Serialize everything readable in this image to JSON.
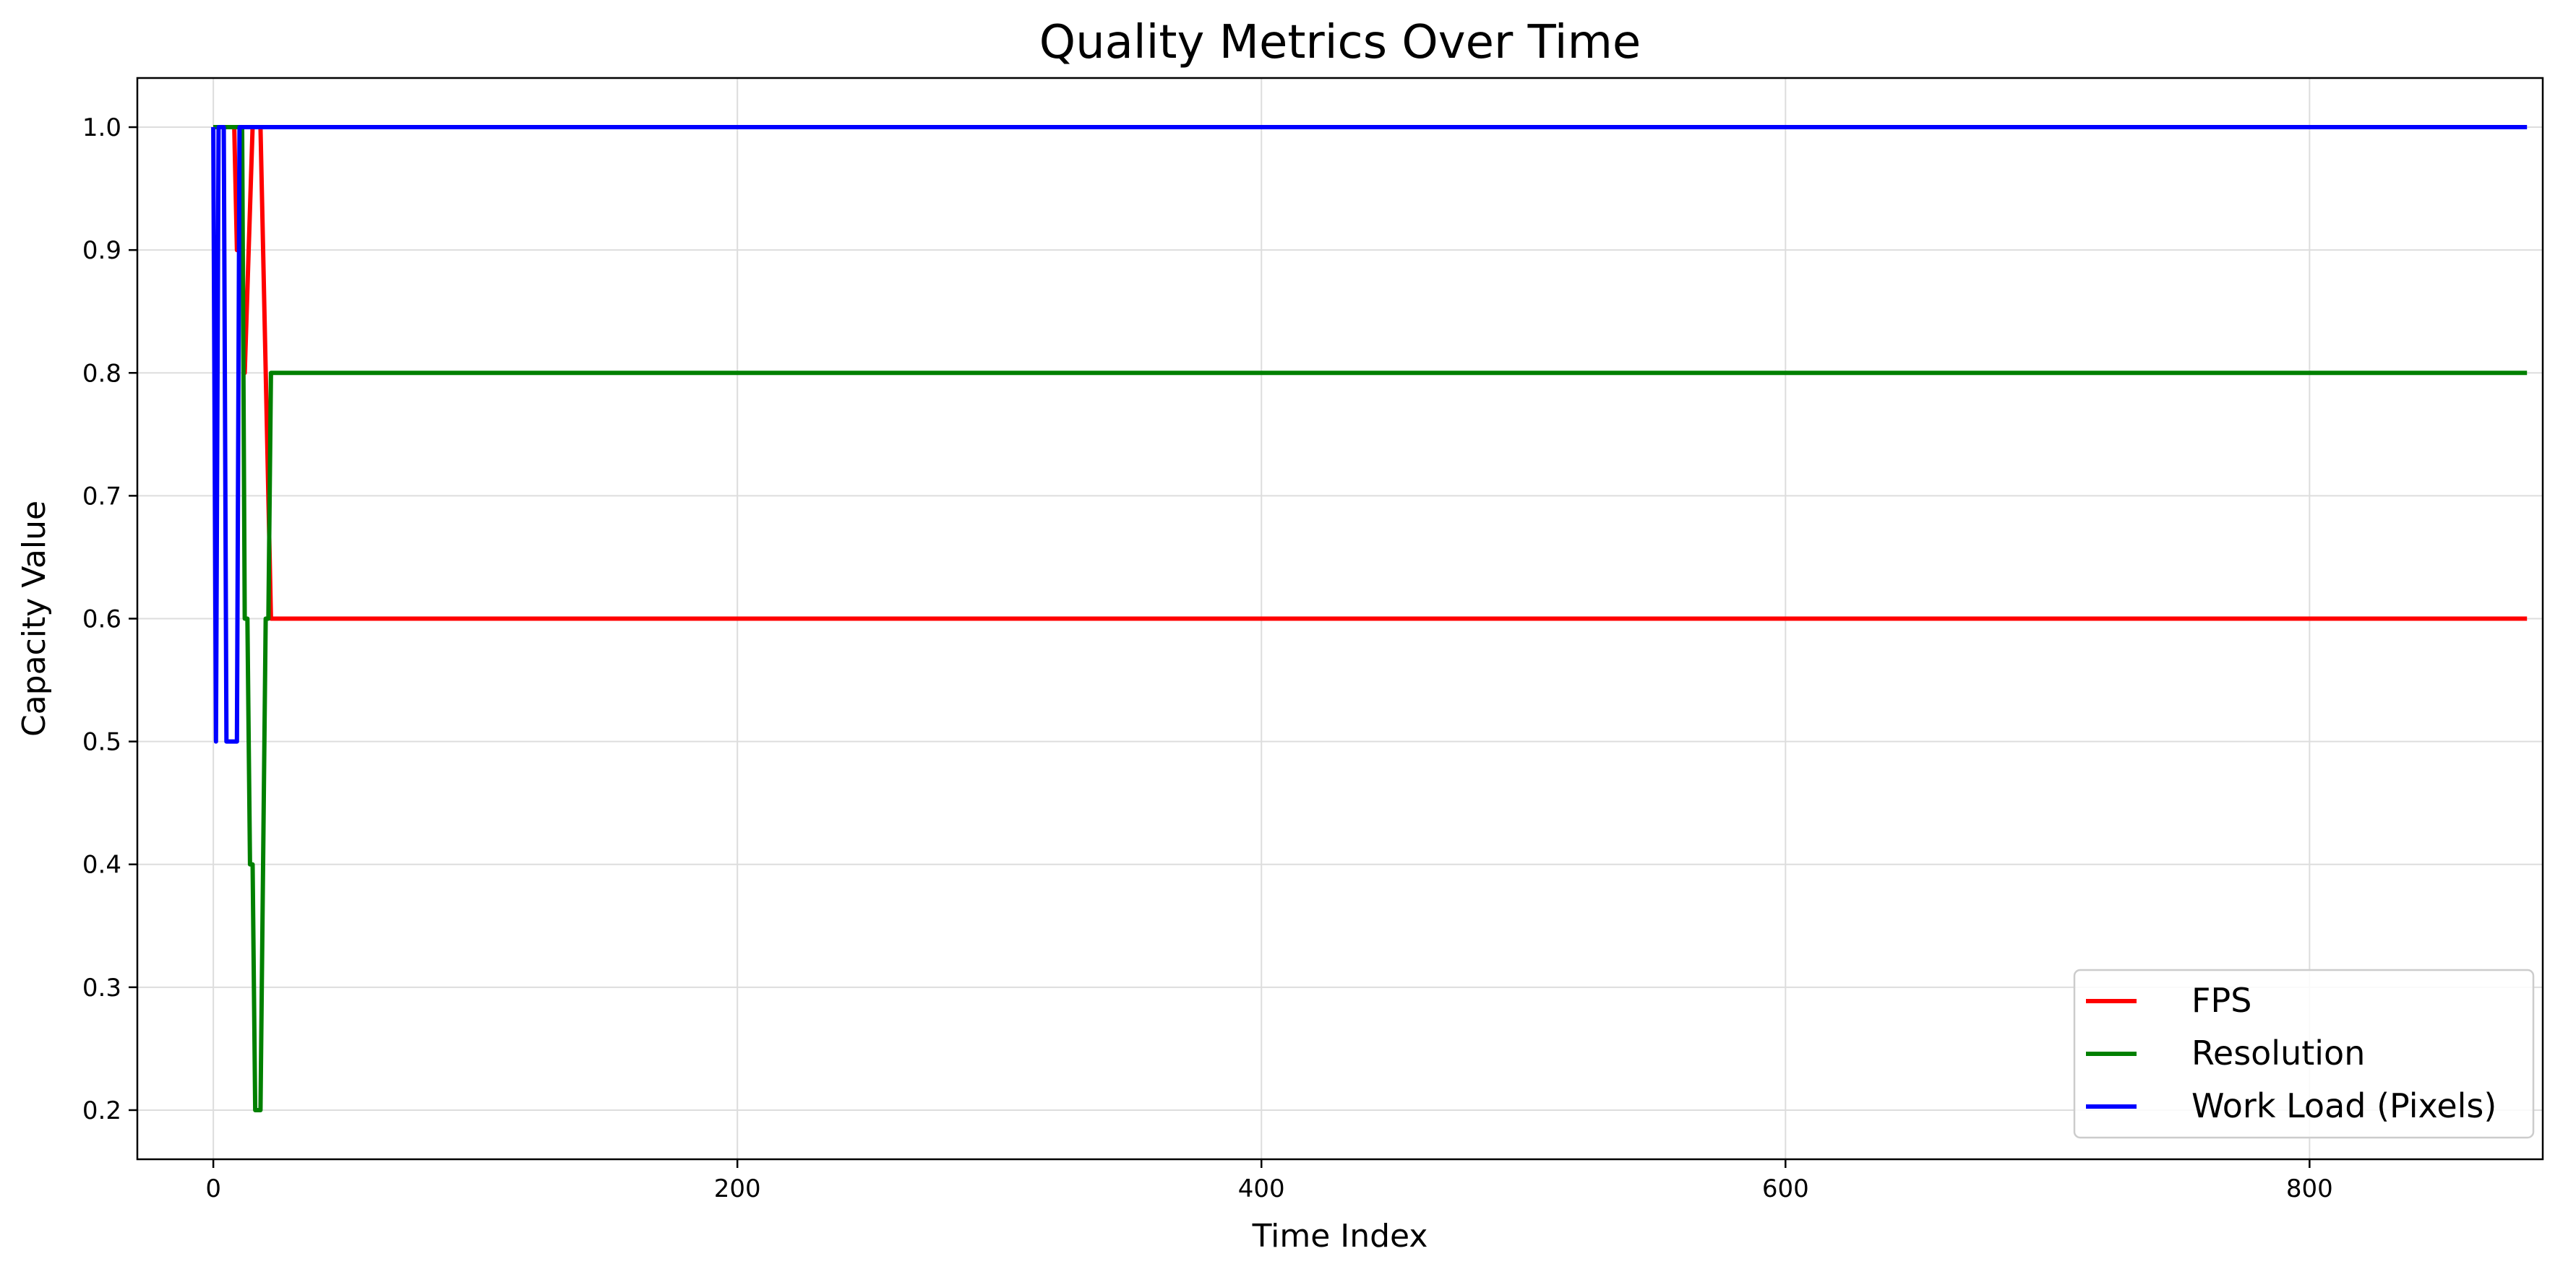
{
  "chart_data": {
    "type": "line",
    "title": "Quality Metrics Over Time",
    "xlabel": "Time Index",
    "ylabel": "Capacity Value",
    "xlim": [
      -29,
      889
    ],
    "ylim": [
      0.16,
      1.04
    ],
    "xticks": [
      0,
      200,
      400,
      600,
      800
    ],
    "yticks": [
      0.2,
      0.3,
      0.4,
      0.5,
      0.6,
      0.7,
      0.8,
      0.9,
      1.0
    ],
    "grid": true,
    "legend_position": "bottom-right",
    "series": [
      {
        "name": "FPS",
        "color": "#ff0000",
        "x": [
          0,
          5,
          6,
          8,
          9,
          11,
          12,
          15,
          16,
          18,
          22,
          883
        ],
        "y": [
          1.0,
          1.0,
          1.0,
          1.0,
          0.9,
          0.9,
          0.8,
          1.0,
          1.0,
          1.0,
          0.6,
          0.6
        ]
      },
      {
        "name": "Resolution",
        "color": "#008000",
        "x": [
          0,
          5,
          6,
          8,
          9,
          11,
          12,
          13,
          14,
          15,
          16,
          17,
          18,
          20,
          21,
          22,
          23,
          883
        ],
        "y": [
          1.0,
          1.0,
          1.0,
          1.0,
          1.0,
          1.0,
          0.6,
          0.6,
          0.4,
          0.4,
          0.2,
          0.2,
          0.2,
          0.6,
          0.6,
          0.8,
          0.8,
          0.8
        ]
      },
      {
        "name": "Work Load (Pixels)",
        "color": "#0000ff",
        "x": [
          0,
          1,
          2,
          3,
          4,
          5,
          6,
          7,
          8,
          9,
          10,
          11,
          12,
          13,
          883
        ],
        "y": [
          1.0,
          0.5,
          1.0,
          1.0,
          1.0,
          0.5,
          0.5,
          0.5,
          0.5,
          0.5,
          1.0,
          1.0,
          1.0,
          1.0,
          1.0
        ]
      }
    ]
  }
}
